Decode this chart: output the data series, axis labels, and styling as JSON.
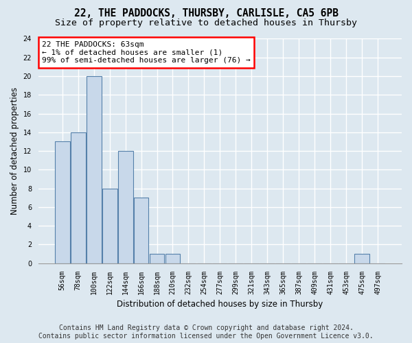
{
  "title": "22, THE PADDOCKS, THURSBY, CARLISLE, CA5 6PB",
  "subtitle": "Size of property relative to detached houses in Thursby",
  "xlabel": "Distribution of detached houses by size in Thursby",
  "ylabel": "Number of detached properties",
  "categories": [
    "56sqm",
    "78sqm",
    "100sqm",
    "122sqm",
    "144sqm",
    "166sqm",
    "188sqm",
    "210sqm",
    "232sqm",
    "254sqm",
    "277sqm",
    "299sqm",
    "321sqm",
    "343sqm",
    "365sqm",
    "387sqm",
    "409sqm",
    "431sqm",
    "453sqm",
    "475sqm",
    "497sqm"
  ],
  "values": [
    13,
    14,
    20,
    8,
    12,
    7,
    1,
    1,
    0,
    0,
    0,
    0,
    0,
    0,
    0,
    0,
    0,
    0,
    0,
    1,
    0
  ],
  "bar_color": "#c8d8ea",
  "bar_edge_color": "#5580aa",
  "ylim": [
    0,
    24
  ],
  "yticks": [
    0,
    2,
    4,
    6,
    8,
    10,
    12,
    14,
    16,
    18,
    20,
    22,
    24
  ],
  "annotation_text": "22 THE PADDOCKS: 63sqm\n← 1% of detached houses are smaller (1)\n99% of semi-detached houses are larger (76) →",
  "footer_line1": "Contains HM Land Registry data © Crown copyright and database right 2024.",
  "footer_line2": "Contains public sector information licensed under the Open Government Licence v3.0.",
  "background_color": "#dde8f0",
  "plot_background_color": "#dde8f0",
  "grid_color": "#ffffff",
  "title_fontsize": 10.5,
  "subtitle_fontsize": 9.5,
  "tick_fontsize": 7,
  "ylabel_fontsize": 8.5,
  "xlabel_fontsize": 8.5,
  "footer_fontsize": 7
}
